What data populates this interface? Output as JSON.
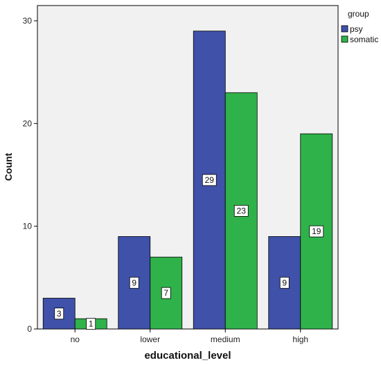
{
  "chart_data": {
    "type": "bar",
    "categories": [
      "no",
      "lower",
      "medium",
      "high"
    ],
    "series": [
      {
        "name": "psy",
        "values": [
          3,
          9,
          29,
          9
        ],
        "color": "#3f51a9"
      },
      {
        "name": "somatic",
        "values": [
          1,
          7,
          23,
          19
        ],
        "color": "#2fb24a"
      }
    ],
    "xlabel": "educational_level",
    "ylabel": "Count",
    "ylim": [
      0,
      30
    ],
    "yticks": [
      0,
      10,
      20,
      30
    ],
    "legend": {
      "title": "group",
      "placement": "top-right"
    },
    "grid": false,
    "plot_background": "#f1f1f1"
  }
}
